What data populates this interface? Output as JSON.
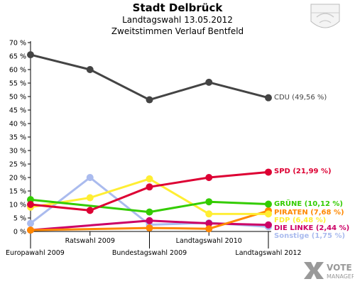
{
  "header": {
    "title": "Stadt Delbrück",
    "subtitle": "Landtagswahl 13.05.2012",
    "subtitle2": "Zweitstimmen Verlauf Bentfeld"
  },
  "branding": {
    "vote_manager_line1": "VOTE",
    "vote_manager_line2": "MANAGER"
  },
  "chart_data": {
    "type": "line",
    "x": [
      "Europawahl 2009",
      "Ratswahl 2009",
      "Bundestagswahl 2009",
      "Landtagswahl 2010",
      "Landtagswahl 2012"
    ],
    "y_ticks": [
      "0 %",
      "5 %",
      "10 %",
      "15 %",
      "20 %",
      "25 %",
      "30 %",
      "35 %",
      "40 %",
      "45 %",
      "50 %",
      "55 %",
      "60 %",
      "65 %",
      "70 %"
    ],
    "ylim": [
      0,
      70
    ],
    "grid": false,
    "series": [
      {
        "name": "CDU",
        "label": "CDU (49,56 %)",
        "color": "#444444",
        "values": [
          65.5,
          60.0,
          48.8,
          55.3,
          49.56
        ]
      },
      {
        "name": "SPD",
        "label": "SPD (21,99 %)",
        "color": "#dd0033",
        "values": [
          10.0,
          7.8,
          16.5,
          20.0,
          21.99
        ]
      },
      {
        "name": "GRÜNE",
        "label": "GRÜNE (10,12 %)",
        "color": "#33cc00",
        "values": [
          11.8,
          null,
          7.2,
          11.0,
          10.12
        ]
      },
      {
        "name": "FDP",
        "label": "FDP (6,48 %)",
        "color": "#ffee33",
        "values": [
          9.0,
          12.5,
          19.5,
          6.5,
          6.48
        ]
      },
      {
        "name": "PIRATEN",
        "label": "PIRATEN (7,68 %)",
        "color": "#ff8800",
        "values": [
          0.5,
          null,
          1.3,
          1.0,
          7.68
        ]
      },
      {
        "name": "DIE LINKE",
        "label": "DIE LINKE (2,44 %)",
        "color": "#cc0066",
        "values": [
          0.5,
          null,
          4.0,
          3.0,
          2.44
        ]
      },
      {
        "name": "Sonstige",
        "label": "Sonstige (1,75 %)",
        "color": "#aabbee",
        "values": [
          3.0,
          20.0,
          2.5,
          3.2,
          1.75
        ]
      }
    ]
  }
}
